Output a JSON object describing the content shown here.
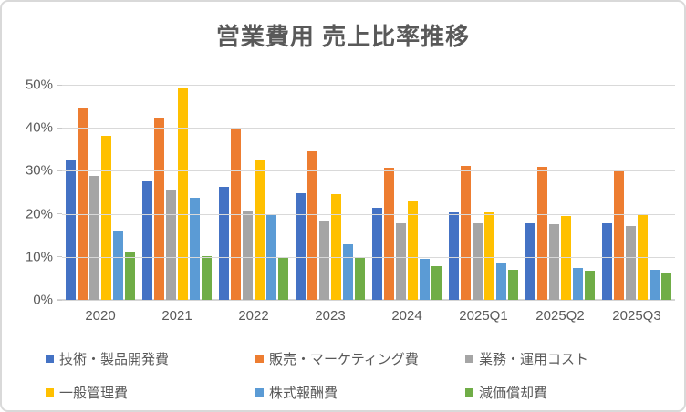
{
  "title": "営業費用 売上比率推移",
  "colors": {
    "text": "#595959",
    "grid": "#D9D9D9",
    "border": "#D9D9D9",
    "background": "#FFFFFF"
  },
  "chart_data": {
    "type": "bar",
    "title": "営業費用 売上比率推移",
    "categories": [
      "2020",
      "2021",
      "2022",
      "2023",
      "2024",
      "2025Q1",
      "2025Q2",
      "2025Q3"
    ],
    "series": [
      {
        "name": "技術・製品開発費",
        "color": "#4472C4",
        "values": [
          32.5,
          27.5,
          26.3,
          24.7,
          21.4,
          20.3,
          17.8,
          17.8
        ]
      },
      {
        "name": "販売・マーケティング費",
        "color": "#ED7D31",
        "values": [
          44.5,
          42.1,
          40.0,
          34.5,
          30.7,
          31.1,
          30.9,
          30.1
        ]
      },
      {
        "name": "業務・運用コスト",
        "color": "#A5A5A5",
        "values": [
          28.8,
          25.6,
          20.5,
          18.4,
          17.8,
          17.7,
          17.6,
          17.1
        ]
      },
      {
        "name": "一般管理費",
        "color": "#FFC000",
        "values": [
          38.1,
          49.3,
          32.4,
          24.6,
          23.1,
          20.3,
          19.4,
          19.9
        ]
      },
      {
        "name": "株式報酬費",
        "color": "#5B9BD5",
        "values": [
          16.0,
          23.7,
          19.9,
          13.0,
          9.5,
          8.4,
          7.4,
          7.1
        ]
      },
      {
        "name": "減価償却費",
        "color": "#70AD47",
        "values": [
          11.2,
          10.2,
          9.9,
          9.7,
          7.9,
          7.1,
          6.8,
          6.4
        ]
      }
    ],
    "xlabel": "",
    "ylabel": "",
    "ylim": [
      0,
      50
    ],
    "yticks": [
      "0%",
      "10%",
      "20%",
      "30%",
      "40%",
      "50%"
    ],
    "grid": true,
    "legend_position": "bottom"
  }
}
